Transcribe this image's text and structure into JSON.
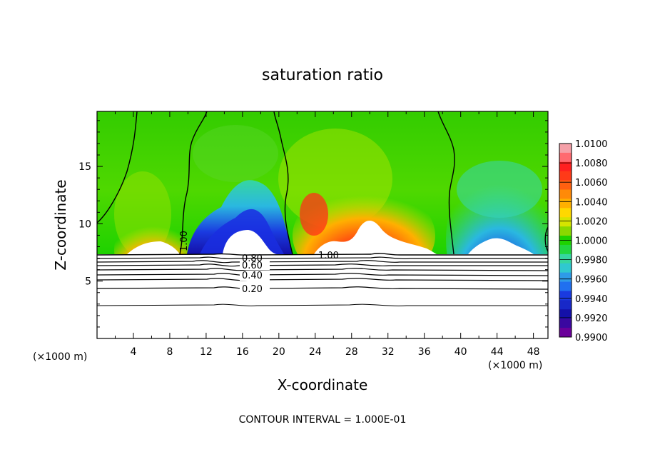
{
  "chart_data": {
    "type": "heatmap",
    "title": "saturation ratio",
    "xlabel": "X-coordinate",
    "ylabel": "Z-coordinate",
    "x_unit": "(×1000 m)",
    "z_unit": "(×1000 m)",
    "xlim": [
      0,
      49.6
    ],
    "ylim": [
      0,
      19.8
    ],
    "x_ticks": [
      "4",
      "8",
      "12",
      "16",
      "20",
      "24",
      "28",
      "32",
      "36",
      "40",
      "44",
      "48"
    ],
    "y_ticks": [
      "5",
      "10",
      "15"
    ],
    "colorbar": {
      "labels": [
        "1.0100",
        "1.0080",
        "1.0060",
        "1.0040",
        "1.0020",
        "1.0000",
        "0.9980",
        "0.9960",
        "0.9940",
        "0.9920",
        "0.9900"
      ],
      "colors": [
        "#f5a0a8",
        "#ff2020",
        "#ff6010",
        "#ffb000",
        "#d6e400",
        "#1ed200",
        "#36d6a0",
        "#2e9be8",
        "#1a3ae0",
        "#1410a8",
        "#6a009a"
      ]
    },
    "contour_lines": [
      {
        "label": "1.00"
      },
      {
        "label": "0.80"
      },
      {
        "label": "0.60"
      },
      {
        "label": "0.40"
      },
      {
        "label": "0.20"
      }
    ],
    "footer": "CONTOUR INTERVAL = 1.000E-01"
  }
}
